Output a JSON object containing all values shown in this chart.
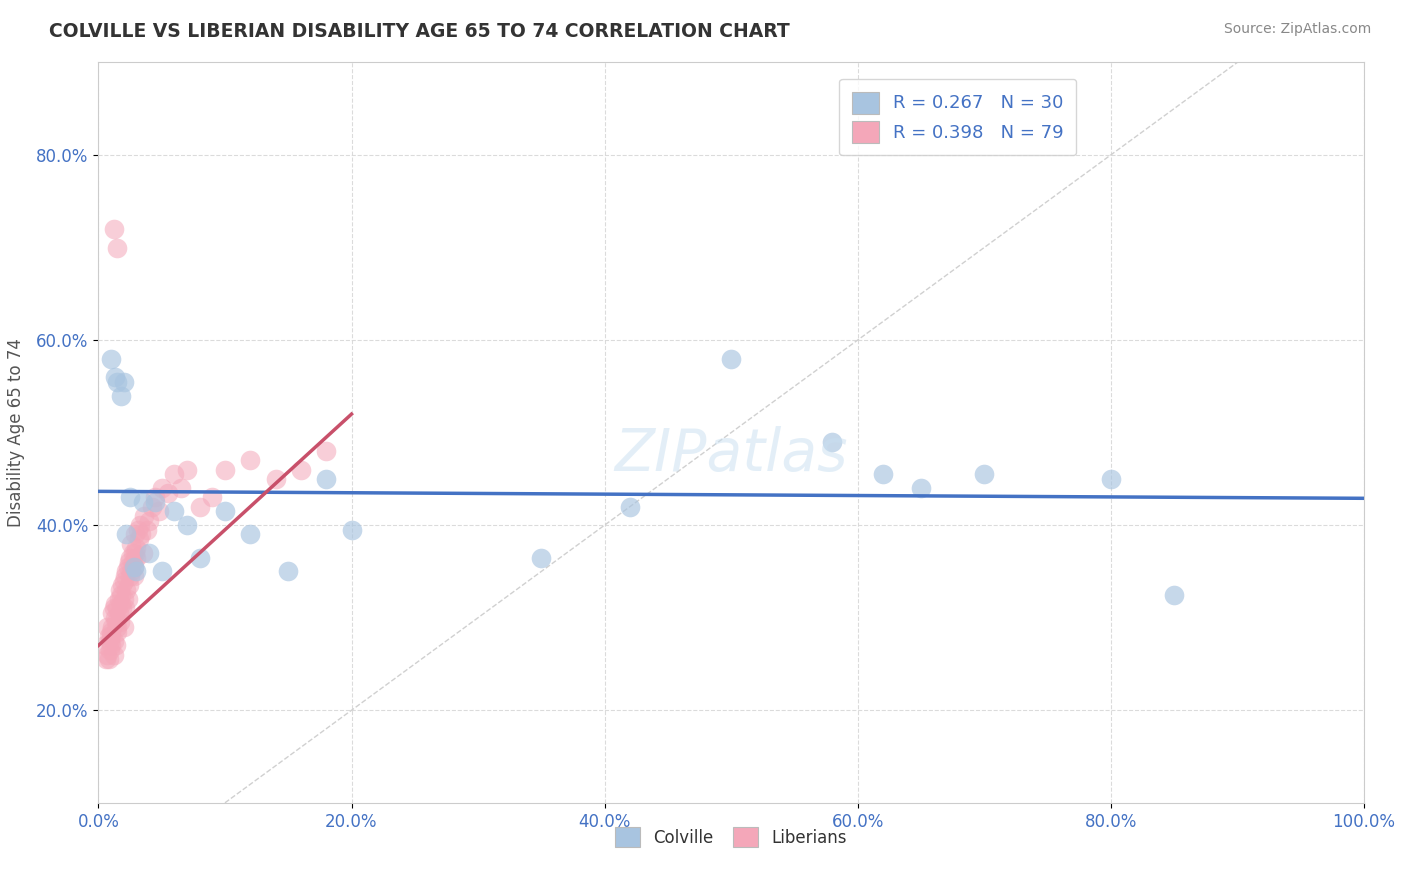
{
  "title": "COLVILLE VS LIBERIAN DISABILITY AGE 65 TO 74 CORRELATION CHART",
  "source": "Source: ZipAtlas.com",
  "ylabel": "Disability Age 65 to 74",
  "xlim": [
    0.0,
    1.0
  ],
  "ylim": [
    0.1,
    0.9
  ],
  "xticks": [
    0.0,
    0.2,
    0.4,
    0.6,
    0.8,
    1.0
  ],
  "yticks": [
    0.2,
    0.4,
    0.6,
    0.8
  ],
  "xticklabels": [
    "0.0%",
    "20.0%",
    "40.0%",
    "60.0%",
    "80.0%",
    "100.0%"
  ],
  "yticklabels": [
    "20.0%",
    "40.0%",
    "60.0%",
    "80.0%"
  ],
  "colville_R": 0.267,
  "colville_N": 30,
  "liberian_R": 0.398,
  "liberian_N": 79,
  "colville_color": "#a8c4e0",
  "liberian_color": "#f4a7b9",
  "colville_line_color": "#4472c4",
  "liberian_line_color": "#c8506a",
  "diagonal_color": "#d0d0d0",
  "background_color": "#ffffff",
  "colville_x": [
    0.01,
    0.013,
    0.015,
    0.018,
    0.02,
    0.022,
    0.025,
    0.028,
    0.03,
    0.035,
    0.04,
    0.045,
    0.05,
    0.06,
    0.07,
    0.08,
    0.1,
    0.12,
    0.15,
    0.18,
    0.2,
    0.35,
    0.42,
    0.5,
    0.58,
    0.62,
    0.65,
    0.7,
    0.8,
    0.85
  ],
  "colville_y": [
    0.58,
    0.56,
    0.555,
    0.54,
    0.555,
    0.39,
    0.43,
    0.355,
    0.35,
    0.425,
    0.37,
    0.425,
    0.35,
    0.415,
    0.4,
    0.365,
    0.415,
    0.39,
    0.35,
    0.45,
    0.395,
    0.365,
    0.42,
    0.58,
    0.49,
    0.455,
    0.44,
    0.455,
    0.45,
    0.325
  ],
  "liberian_x": [
    0.005,
    0.006,
    0.007,
    0.007,
    0.008,
    0.008,
    0.009,
    0.009,
    0.01,
    0.01,
    0.01,
    0.011,
    0.011,
    0.012,
    0.012,
    0.012,
    0.013,
    0.013,
    0.014,
    0.014,
    0.015,
    0.015,
    0.015,
    0.016,
    0.016,
    0.017,
    0.017,
    0.018,
    0.018,
    0.019,
    0.019,
    0.02,
    0.02,
    0.02,
    0.021,
    0.021,
    0.022,
    0.022,
    0.023,
    0.023,
    0.024,
    0.024,
    0.025,
    0.025,
    0.026,
    0.026,
    0.027,
    0.027,
    0.028,
    0.028,
    0.029,
    0.029,
    0.03,
    0.03,
    0.031,
    0.032,
    0.033,
    0.034,
    0.035,
    0.036,
    0.038,
    0.04,
    0.042,
    0.045,
    0.048,
    0.05,
    0.055,
    0.06,
    0.065,
    0.07,
    0.08,
    0.09,
    0.1,
    0.12,
    0.14,
    0.16,
    0.18,
    0.012,
    0.015
  ],
  "liberian_y": [
    0.27,
    0.255,
    0.26,
    0.29,
    0.255,
    0.28,
    0.265,
    0.275,
    0.285,
    0.27,
    0.28,
    0.305,
    0.29,
    0.26,
    0.31,
    0.275,
    0.3,
    0.315,
    0.27,
    0.295,
    0.285,
    0.31,
    0.29,
    0.32,
    0.305,
    0.33,
    0.295,
    0.325,
    0.315,
    0.31,
    0.335,
    0.34,
    0.29,
    0.32,
    0.345,
    0.31,
    0.35,
    0.33,
    0.355,
    0.32,
    0.36,
    0.335,
    0.345,
    0.365,
    0.35,
    0.38,
    0.36,
    0.37,
    0.345,
    0.355,
    0.37,
    0.39,
    0.365,
    0.375,
    0.395,
    0.385,
    0.4,
    0.39,
    0.37,
    0.41,
    0.395,
    0.405,
    0.42,
    0.43,
    0.415,
    0.44,
    0.435,
    0.455,
    0.44,
    0.46,
    0.42,
    0.43,
    0.46,
    0.47,
    0.45,
    0.46,
    0.48,
    0.72,
    0.7
  ]
}
